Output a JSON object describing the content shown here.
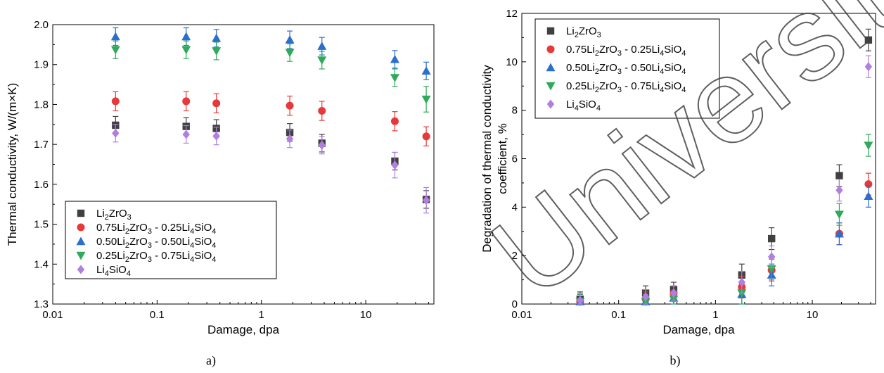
{
  "watermark": "University",
  "panels": [
    "a)",
    "b)"
  ],
  "chart_data": [
    {
      "type": "scatter",
      "title": "",
      "xlabel": "Damage, dpa",
      "ylabel": "Thermal conductivity, W/(m×K)",
      "xscale": "log",
      "xlim": [
        0.01,
        45
      ],
      "ylim": [
        1.3,
        2.0
      ],
      "xticks": [
        0.01,
        0.1,
        1,
        10
      ],
      "xtick_labels": [
        "0.01",
        "0.1",
        "1",
        "10"
      ],
      "yticks": [
        1.3,
        1.4,
        1.5,
        1.6,
        1.7,
        1.8,
        1.9,
        2.0
      ],
      "ytick_labels": [
        "1.3",
        "1.4",
        "1.5",
        "1.6",
        "1.7",
        "1.8",
        "1.9",
        "2.0"
      ],
      "legend_position": "lower-left",
      "x": [
        0.04,
        0.19,
        0.37,
        1.87,
        3.8,
        19,
        38
      ],
      "series": [
        {
          "name": "Li2ZrO3",
          "name_main": "Li",
          "name_sub1": "2",
          "name_mid": "ZrO",
          "name_sub2": "3",
          "name_tail": "",
          "name_sub3": "",
          "name_end": "",
          "marker": "square",
          "color": "#404040",
          "values": [
            1.748,
            1.745,
            1.74,
            1.73,
            1.703,
            1.658,
            1.562
          ],
          "errors": [
            0.022,
            0.022,
            0.022,
            0.022,
            0.022,
            0.022,
            0.022
          ]
        },
        {
          "name": "0.75Li2ZrO3 - 0.25Li4SiO4",
          "marker": "circle",
          "color": "#e8393a",
          "values": [
            1.808,
            1.808,
            1.803,
            1.797,
            1.784,
            1.758,
            1.72
          ],
          "errors": [
            0.024,
            0.024,
            0.024,
            0.024,
            0.024,
            0.024,
            0.024
          ]
        },
        {
          "name": "0.50Li2ZrO3 - 0.50Li4SiO4",
          "marker": "triangle-up",
          "color": "#2a6fd0",
          "values": [
            1.97,
            1.97,
            1.966,
            1.962,
            1.946,
            1.913,
            1.884
          ],
          "errors": [
            0.022,
            0.022,
            0.022,
            0.022,
            0.022,
            0.022,
            0.022
          ]
        },
        {
          "name": "0.25Li2ZrO3 - 0.75Li4SiO4",
          "marker": "triangle-down",
          "color": "#2fa95a",
          "values": [
            1.937,
            1.937,
            1.934,
            1.93,
            1.911,
            1.867,
            1.813
          ],
          "errors": [
            0.022,
            0.022,
            0.022,
            0.022,
            0.022,
            0.022,
            0.032
          ]
        },
        {
          "name": "Li4SiO4",
          "marker": "diamond",
          "color": "#b07fe0",
          "values": [
            1.728,
            1.725,
            1.721,
            1.714,
            1.698,
            1.648,
            1.56
          ],
          "errors": [
            0.022,
            0.022,
            0.022,
            0.022,
            0.022,
            0.032,
            0.032
          ]
        }
      ]
    },
    {
      "type": "scatter",
      "title": "",
      "xlabel": "Damage, dpa",
      "ylabel": "Degradation of thermal conductivity coefficient, %",
      "ylabel_lines": [
        "Degradation of thermal conductivity",
        "coefficient, %"
      ],
      "xscale": "log",
      "xlim": [
        0.01,
        45
      ],
      "ylim": [
        0,
        12
      ],
      "xticks": [
        0.01,
        0.1,
        1,
        10
      ],
      "xtick_labels": [
        "0.01",
        "0.1",
        "1",
        "10"
      ],
      "yticks": [
        0,
        2,
        4,
        6,
        8,
        10,
        12
      ],
      "ytick_labels": [
        "0",
        "2",
        "4",
        "6",
        "8",
        "10",
        "12"
      ],
      "legend_position": "top-left",
      "x": [
        0.04,
        0.19,
        0.37,
        1.87,
        3.8,
        19,
        38
      ],
      "series": [
        {
          "name": "Li2ZrO3",
          "marker": "square",
          "color": "#404040",
          "values": [
            0.2,
            0.45,
            0.6,
            1.2,
            2.7,
            5.3,
            10.9
          ],
          "errors": [
            0.3,
            0.3,
            0.3,
            0.45,
            0.45,
            0.45,
            0.45
          ]
        },
        {
          "name": "0.75Li2ZrO3 - 0.25Li4SiO4",
          "marker": "circle",
          "color": "#e8393a",
          "values": [
            0.1,
            0.2,
            0.45,
            0.7,
            1.4,
            2.9,
            4.95
          ],
          "errors": [
            0.3,
            0.3,
            0.3,
            0.45,
            0.45,
            0.45,
            0.45
          ]
        },
        {
          "name": "0.50Li2ZrO3 - 0.50Li4SiO4",
          "marker": "triangle-up",
          "color": "#2a6fd0",
          "values": [
            0.1,
            0.1,
            0.25,
            0.4,
            1.2,
            2.9,
            4.45
          ],
          "errors": [
            0.3,
            0.3,
            0.3,
            0.45,
            0.45,
            0.45,
            0.45
          ]
        },
        {
          "name": "0.25Li2ZrO3 - 0.75Li4SiO4",
          "marker": "triangle-down",
          "color": "#2fa95a",
          "values": [
            0.1,
            0.1,
            0.2,
            0.45,
            1.45,
            3.7,
            6.55
          ],
          "errors": [
            0.3,
            0.3,
            0.3,
            0.45,
            0.45,
            0.45,
            0.45
          ]
        },
        {
          "name": "Li4SiO4",
          "marker": "diamond",
          "color": "#b07fe0",
          "values": [
            0.15,
            0.3,
            0.45,
            0.9,
            1.95,
            4.7,
            9.8
          ],
          "errors": [
            0.3,
            0.3,
            0.3,
            0.45,
            0.45,
            0.45,
            0.45
          ]
        }
      ]
    }
  ],
  "legend_labels": [
    {
      "parts": [
        [
          "Li",
          ""
        ],
        [
          "2",
          "sub"
        ],
        [
          "ZrO",
          ""
        ],
        [
          "3",
          "sub"
        ]
      ]
    },
    {
      "parts": [
        [
          "0.75Li",
          ""
        ],
        [
          "2",
          "sub"
        ],
        [
          "ZrO",
          ""
        ],
        [
          "3",
          "sub"
        ],
        [
          " - 0.25Li",
          ""
        ],
        [
          "4",
          "sub"
        ],
        [
          "SiO",
          ""
        ],
        [
          "4",
          "sub"
        ]
      ]
    },
    {
      "parts": [
        [
          "0.50Li",
          ""
        ],
        [
          "2",
          "sub"
        ],
        [
          "ZrO",
          ""
        ],
        [
          "3",
          "sub"
        ],
        [
          " - 0.50Li",
          ""
        ],
        [
          "4",
          "sub"
        ],
        [
          "SiO",
          ""
        ],
        [
          "4",
          "sub"
        ]
      ]
    },
    {
      "parts": [
        [
          "0.25Li",
          ""
        ],
        [
          "2",
          "sub"
        ],
        [
          "ZrO",
          ""
        ],
        [
          "3",
          "sub"
        ],
        [
          " - 0.75Li",
          ""
        ],
        [
          "4",
          "sub"
        ],
        [
          "SiO",
          ""
        ],
        [
          "4",
          "sub"
        ]
      ]
    },
    {
      "parts": [
        [
          "Li",
          ""
        ],
        [
          "4",
          "sub"
        ],
        [
          "SiO",
          ""
        ],
        [
          "4",
          "sub"
        ]
      ]
    }
  ]
}
